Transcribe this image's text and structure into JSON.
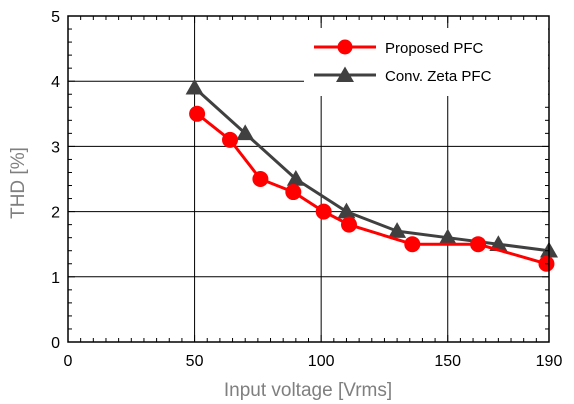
{
  "chart_data": {
    "type": "line",
    "title": "",
    "xlabel": "Input voltage [Vrms]",
    "ylabel": "THD [%]",
    "xlim": [
      0,
      190
    ],
    "ylim": [
      0,
      5
    ],
    "xticks": [
      0,
      50,
      100,
      150,
      190
    ],
    "yticks": [
      0,
      1,
      2,
      3,
      4,
      5
    ],
    "grid": true,
    "legend_position": "top-right",
    "series": [
      {
        "name": "Proposed PFC",
        "color": "#ff0000",
        "marker": "circle",
        "x": [
          51,
          64,
          76,
          89,
          101,
          111,
          136,
          162,
          189
        ],
        "y": [
          3.5,
          3.1,
          2.5,
          2.3,
          2.0,
          1.8,
          1.5,
          1.5,
          1.2
        ]
      },
      {
        "name": "Conv. Zeta PFC",
        "color": "#404040",
        "marker": "triangle",
        "x": [
          50,
          70,
          90,
          110,
          130,
          150,
          170,
          190
        ],
        "y": [
          3.9,
          3.2,
          2.5,
          2.0,
          1.7,
          1.6,
          1.5,
          1.4
        ]
      }
    ]
  }
}
